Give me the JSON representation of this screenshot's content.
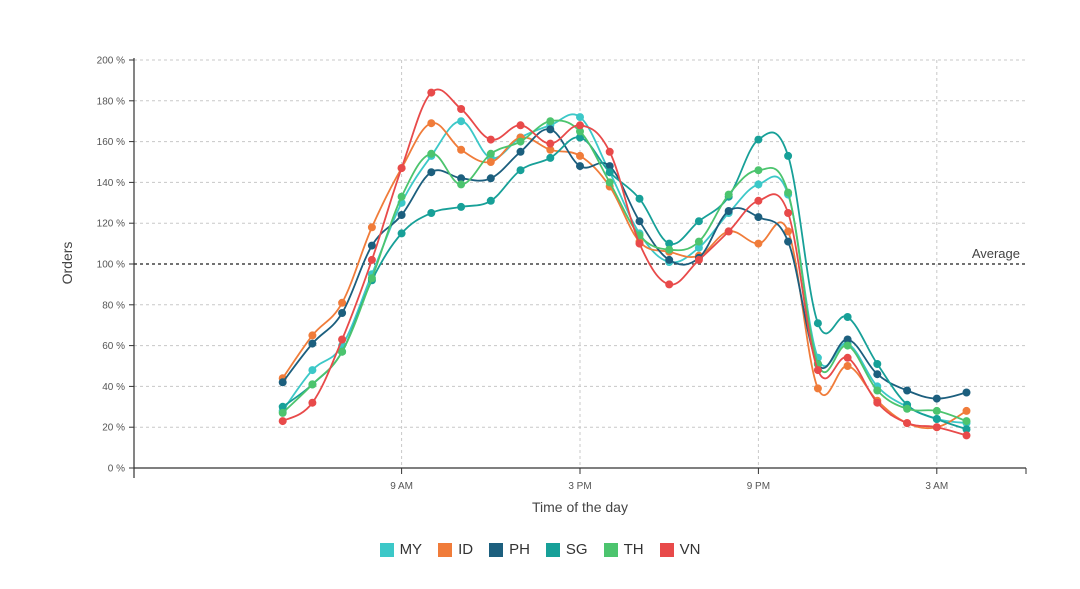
{
  "chart_data": {
    "type": "line",
    "ylabel": "Orders",
    "xlabel": "Time of the day",
    "ylim": [
      0,
      200
    ],
    "yticks": [
      "0 %",
      "20 %",
      "40 %",
      "60 %",
      "80 %",
      "100 %",
      "120 %",
      "140 %",
      "160 %",
      "180 %",
      "200 %"
    ],
    "xticks": [
      "9 AM",
      "3 PM",
      "9 PM",
      "3 AM"
    ],
    "average": {
      "label": "Average",
      "value": 100
    },
    "x": [
      5,
      6,
      7,
      8,
      9,
      10,
      11,
      12,
      13,
      14,
      15,
      16,
      17,
      18,
      19,
      20,
      21,
      22,
      23,
      24,
      25,
      26,
      27,
      28
    ],
    "series": [
      {
        "name": "MY",
        "color": "#3cc8c8",
        "values": [
          28,
          48,
          60,
          95,
          130,
          153,
          170,
          152,
          162,
          168,
          172,
          145,
          115,
          101,
          108,
          125,
          139,
          134,
          54,
          61,
          40,
          30,
          24,
          22
        ]
      },
      {
        "name": "ID",
        "color": "#f07c3a",
        "values": [
          44,
          65,
          81,
          118,
          147,
          169,
          156,
          150,
          162,
          156,
          153,
          138,
          111,
          106,
          104,
          116,
          110,
          116,
          39,
          50,
          33,
          22,
          20,
          28
        ]
      },
      {
        "name": "PH",
        "color": "#1c5f7e",
        "values": [
          42,
          61,
          76,
          109,
          124,
          145,
          142,
          142,
          155,
          166,
          148,
          148,
          121,
          102,
          103,
          126,
          123,
          111,
          51,
          63,
          46,
          38,
          34,
          37
        ]
      },
      {
        "name": "SG",
        "color": "#17a098",
        "values": [
          30,
          41,
          57,
          92,
          115,
          125,
          128,
          131,
          146,
          152,
          162,
          145,
          132,
          110,
          121,
          133,
          161,
          153,
          71,
          74,
          51,
          31,
          24,
          19
        ]
      },
      {
        "name": "TH",
        "color": "#4cc46e",
        "values": [
          27,
          41,
          57,
          93,
          133,
          154,
          139,
          154,
          160,
          170,
          165,
          140,
          114,
          107,
          111,
          134,
          146,
          135,
          51,
          60,
          38,
          29,
          28,
          23
        ]
      },
      {
        "name": "VN",
        "color": "#e84a4a",
        "values": [
          23,
          32,
          63,
          102,
          147,
          184,
          176,
          161,
          168,
          159,
          168,
          155,
          110,
          90,
          102,
          116,
          131,
          125,
          48,
          54,
          32,
          22,
          20,
          16
        ]
      }
    ]
  }
}
